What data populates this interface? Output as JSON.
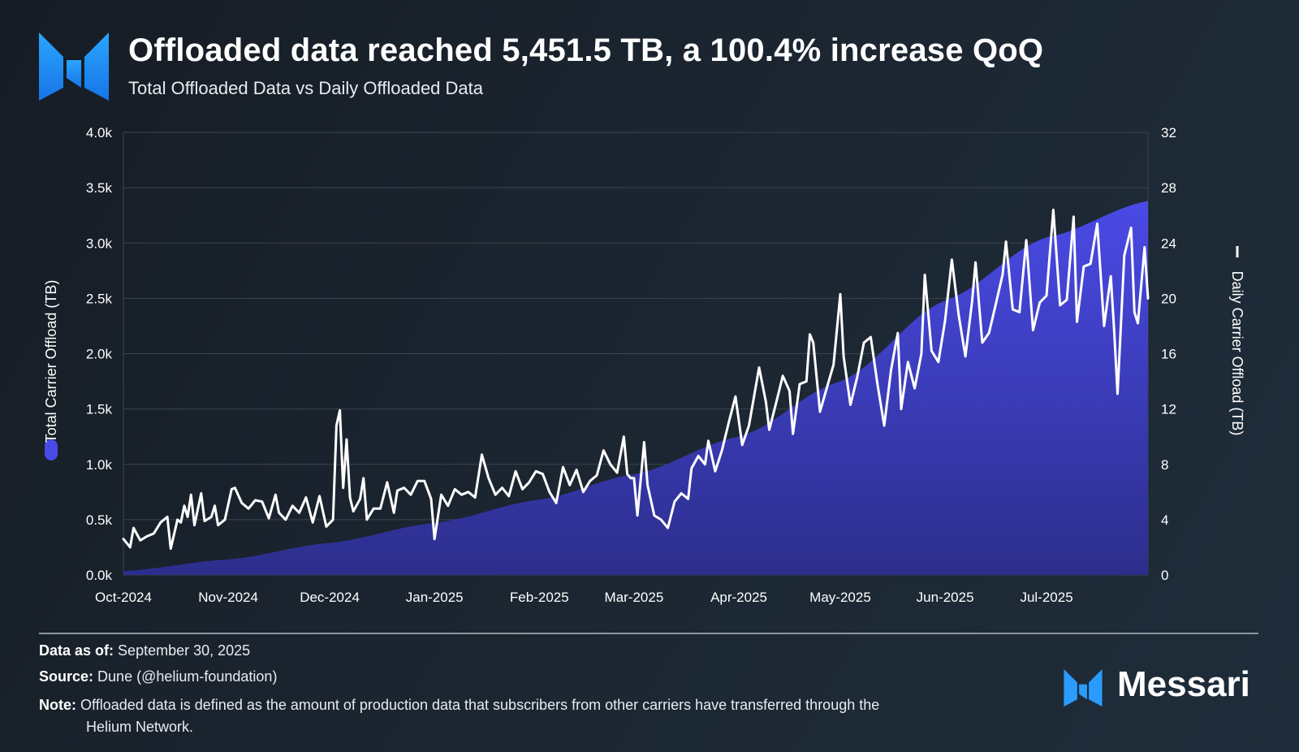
{
  "header": {
    "title": "Offloaded data reached 5,451.5 TB, a 100.4% increase QoQ",
    "subtitle": "Total Offloaded Data vs Daily Offloaded Data"
  },
  "footer": {
    "data_as_of_label": "Data as of:",
    "data_as_of_value": "September 30, 2025",
    "source_label": "Source:",
    "source_value": "Dune (@helium-foundation)",
    "note_label": "Note:",
    "note_line1": "Offloaded data is defined as the amount of production data that subscribers from other carriers have transferred through the",
    "note_line2": "Helium Network.",
    "brand": "Messari"
  },
  "colors": {
    "area_fill_top": "#4a4ae6",
    "area_fill_bottom": "#2c2e8c",
    "line": "#ffffff",
    "grid": "#3a4450",
    "axis_text": "#ffffff"
  },
  "chart_data": {
    "type": "area+line",
    "title": "Offloaded data reached 5,451.5 TB, a 100.4% increase QoQ",
    "subtitle": "Total Offloaded Data vs Daily Offloaded Data",
    "x_tick_labels": [
      "Oct-2024",
      "Nov-2024",
      "Dec-2024",
      "Jan-2025",
      "Feb-2025",
      "Mar-2025",
      "Apr-2025",
      "May-2025",
      "Jun-2025",
      "Jul-2025"
    ],
    "x_tick_days": [
      0,
      31,
      61,
      92,
      123,
      151,
      182,
      212,
      243,
      273
    ],
    "x_range_days": [
      0,
      303
    ],
    "y_left": {
      "label": "Total Carrier Offload (TB)",
      "ticks": [
        "0.0k",
        "0.5k",
        "1.0k",
        "1.5k",
        "2.0k",
        "2.5k",
        "3.0k",
        "3.5k",
        "4.0k"
      ],
      "range": [
        0,
        4000
      ]
    },
    "y_right": {
      "label": "Daily Carrier Offload (TB)",
      "ticks": [
        "0",
        "4",
        "8",
        "12",
        "16",
        "20",
        "24",
        "28",
        "32"
      ],
      "range": [
        0,
        32
      ]
    },
    "series": [
      {
        "name": "Total Carrier Offload (TB)",
        "kind": "area",
        "axis": "left",
        "points": [
          [
            0,
            35
          ],
          [
            31,
            140
          ],
          [
            61,
            290
          ],
          [
            92,
            470
          ],
          [
            123,
            680
          ],
          [
            151,
            910
          ],
          [
            182,
            1250
          ],
          [
            212,
            1750
          ],
          [
            243,
            2480
          ],
          [
            273,
            3050
          ],
          [
            303,
            3380
          ]
        ]
      },
      {
        "name": "Daily Carrier Offload (TB)",
        "kind": "line",
        "axis": "right",
        "points": [
          [
            0,
            2.6
          ],
          [
            2,
            2.0
          ],
          [
            3,
            3.4
          ],
          [
            5,
            2.5
          ],
          [
            7,
            2.8
          ],
          [
            9,
            3.0
          ],
          [
            11,
            3.8
          ],
          [
            13,
            4.2
          ],
          [
            14,
            1.9
          ],
          [
            16,
            4.0
          ],
          [
            17,
            3.8
          ],
          [
            18,
            5.0
          ],
          [
            19,
            4.2
          ],
          [
            20,
            5.8
          ],
          [
            21,
            3.6
          ],
          [
            23,
            5.9
          ],
          [
            24,
            3.9
          ],
          [
            26,
            4.2
          ],
          [
            27,
            5.0
          ],
          [
            28,
            3.6
          ],
          [
            30,
            4.0
          ],
          [
            32,
            6.2
          ],
          [
            33,
            6.3
          ],
          [
            35,
            5.2
          ],
          [
            37,
            4.8
          ],
          [
            39,
            5.4
          ],
          [
            41,
            5.3
          ],
          [
            43,
            4.1
          ],
          [
            45,
            5.8
          ],
          [
            46,
            4.5
          ],
          [
            48,
            4.0
          ],
          [
            50,
            5.0
          ],
          [
            52,
            4.5
          ],
          [
            54,
            5.6
          ],
          [
            56,
            3.8
          ],
          [
            58,
            5.7
          ],
          [
            60,
            3.5
          ],
          [
            62,
            4.0
          ],
          [
            63,
            10.8
          ],
          [
            64,
            11.9
          ],
          [
            65,
            6.3
          ],
          [
            66,
            9.8
          ],
          [
            67,
            5.6
          ],
          [
            68,
            4.6
          ],
          [
            70,
            5.5
          ],
          [
            71,
            7.0
          ],
          [
            72,
            4.0
          ],
          [
            74,
            4.8
          ],
          [
            76,
            4.8
          ],
          [
            78,
            6.7
          ],
          [
            80,
            4.5
          ],
          [
            81,
            6.1
          ],
          [
            83,
            6.3
          ],
          [
            85,
            5.8
          ],
          [
            87,
            6.8
          ],
          [
            89,
            6.8
          ],
          [
            91,
            5.5
          ],
          [
            92,
            2.6
          ],
          [
            94,
            5.8
          ],
          [
            96,
            5.0
          ],
          [
            98,
            6.2
          ],
          [
            100,
            5.8
          ],
          [
            102,
            6.0
          ],
          [
            104,
            5.6
          ],
          [
            106,
            8.7
          ],
          [
            108,
            7.0
          ],
          [
            110,
            5.8
          ],
          [
            112,
            6.3
          ],
          [
            114,
            5.7
          ],
          [
            116,
            7.5
          ],
          [
            118,
            6.2
          ],
          [
            120,
            6.7
          ],
          [
            122,
            7.5
          ],
          [
            124,
            7.3
          ],
          [
            126,
            6.0
          ],
          [
            128,
            5.2
          ],
          [
            130,
            7.8
          ],
          [
            132,
            6.5
          ],
          [
            134,
            7.6
          ],
          [
            136,
            6.0
          ],
          [
            138,
            6.8
          ],
          [
            140,
            7.2
          ],
          [
            142,
            9.0
          ],
          [
            144,
            8.0
          ],
          [
            146,
            7.4
          ],
          [
            148,
            10.0
          ],
          [
            149,
            7.3
          ],
          [
            150,
            7.0
          ],
          [
            151,
            7.0
          ],
          [
            152,
            4.3
          ],
          [
            154,
            9.6
          ],
          [
            155,
            6.5
          ],
          [
            157,
            4.3
          ],
          [
            159,
            4.0
          ],
          [
            161,
            3.4
          ],
          [
            163,
            5.3
          ],
          [
            165,
            5.9
          ],
          [
            167,
            5.5
          ],
          [
            168,
            7.7
          ],
          [
            170,
            8.6
          ],
          [
            172,
            8.0
          ],
          [
            173,
            9.7
          ],
          [
            175,
            7.5
          ],
          [
            177,
            9.0
          ],
          [
            179,
            11.0
          ],
          [
            181,
            12.9
          ],
          [
            183,
            9.4
          ],
          [
            185,
            10.8
          ],
          [
            188,
            15.0
          ],
          [
            190,
            12.5
          ],
          [
            191,
            10.5
          ],
          [
            193,
            12.4
          ],
          [
            195,
            14.4
          ],
          [
            197,
            13.3
          ],
          [
            198,
            10.2
          ],
          [
            200,
            13.8
          ],
          [
            202,
            14.0
          ],
          [
            203,
            17.4
          ],
          [
            204,
            16.8
          ],
          [
            206,
            11.8
          ],
          [
            208,
            13.5
          ],
          [
            210,
            15.2
          ],
          [
            212,
            20.3
          ],
          [
            213,
            15.8
          ],
          [
            215,
            12.3
          ],
          [
            217,
            14.3
          ],
          [
            219,
            16.8
          ],
          [
            221,
            17.2
          ],
          [
            223,
            13.8
          ],
          [
            225,
            10.8
          ],
          [
            227,
            14.8
          ],
          [
            229,
            17.5
          ],
          [
            230,
            12.0
          ],
          [
            232,
            15.4
          ],
          [
            234,
            13.5
          ],
          [
            236,
            16.0
          ],
          [
            237,
            21.7
          ],
          [
            239,
            16.2
          ],
          [
            241,
            15.4
          ],
          [
            243,
            18.4
          ],
          [
            245,
            22.8
          ],
          [
            247,
            18.8
          ],
          [
            249,
            15.8
          ],
          [
            251,
            19.8
          ],
          [
            252,
            22.6
          ],
          [
            254,
            16.8
          ],
          [
            256,
            17.5
          ],
          [
            258,
            19.6
          ],
          [
            260,
            21.7
          ],
          [
            261,
            24.1
          ],
          [
            263,
            19.2
          ],
          [
            265,
            19.0
          ],
          [
            267,
            24.2
          ],
          [
            269,
            17.7
          ],
          [
            271,
            19.7
          ],
          [
            273,
            20.2
          ],
          [
            275,
            26.4
          ],
          [
            277,
            19.5
          ],
          [
            279,
            19.9
          ],
          [
            281,
            25.9
          ],
          [
            282,
            18.3
          ],
          [
            284,
            22.3
          ],
          [
            286,
            22.5
          ],
          [
            288,
            25.4
          ],
          [
            290,
            18.0
          ],
          [
            292,
            21.6
          ],
          [
            293,
            17.7
          ],
          [
            294,
            13.1
          ],
          [
            296,
            23.1
          ],
          [
            298,
            25.1
          ],
          [
            299,
            19.0
          ],
          [
            300,
            18.2
          ],
          [
            302,
            23.7
          ],
          [
            303,
            20.0
          ]
        ]
      }
    ],
    "legend": {
      "left_axis_marker": "Total Carrier Offload (TB)",
      "right_axis_marker": "Daily Carrier Offload (TB)"
    },
    "grid": true
  }
}
